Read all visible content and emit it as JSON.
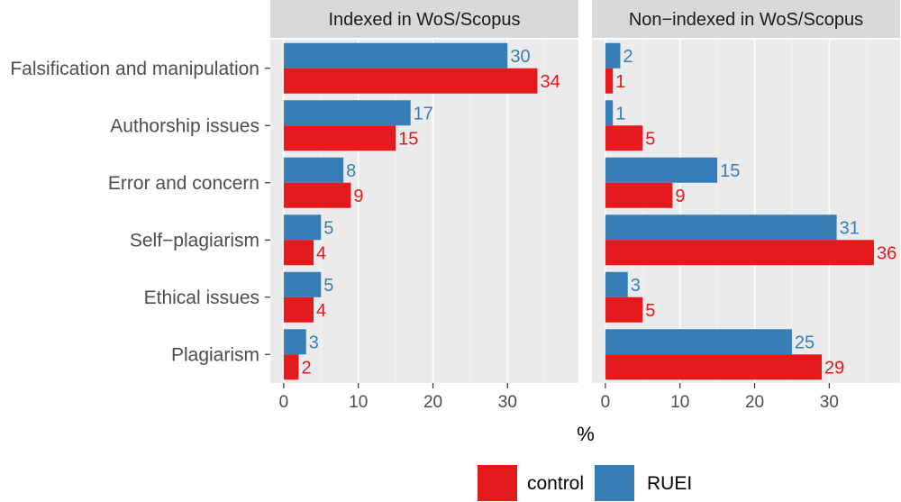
{
  "chart_data": {
    "type": "bar",
    "orientation": "horizontal",
    "categories": [
      "Falsification and manipulation",
      "Authorship issues",
      "Error and concern",
      "Self−plagiarism",
      "Ethical issues",
      "Plagiarism"
    ],
    "xlabel": "%",
    "xticks": [
      0,
      10,
      20,
      30
    ],
    "xlim": [
      -1.8,
      39.5
    ],
    "grid": true,
    "legend_position": "bottom",
    "panels": [
      {
        "title": "Indexed in WoS/Scopus",
        "series": [
          {
            "name": "RUEI",
            "values": [
              30,
              17,
              8,
              5,
              5,
              3
            ]
          },
          {
            "name": "control",
            "values": [
              34,
              15,
              9,
              4,
              4,
              2
            ]
          }
        ]
      },
      {
        "title": "Non−indexed in WoS/Scopus",
        "series": [
          {
            "name": "RUEI",
            "values": [
              2,
              1,
              15,
              31,
              3,
              25
            ]
          },
          {
            "name": "control",
            "values": [
              1,
              5,
              9,
              36,
              5,
              29
            ]
          }
        ]
      }
    ],
    "colors": {
      "RUEI": "#377eb8",
      "control": "#e41a1c"
    },
    "legend": [
      {
        "name": "control",
        "color": "#e41a1c"
      },
      {
        "name": "RUEI",
        "color": "#377eb8"
      }
    ]
  }
}
